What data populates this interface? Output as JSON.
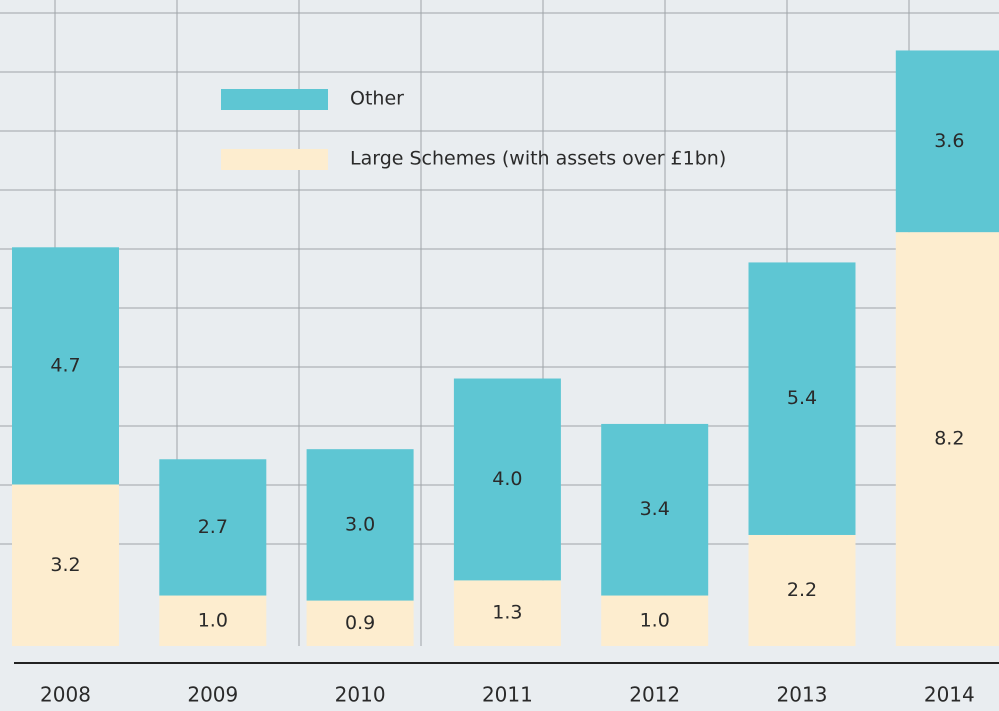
{
  "chart_data": {
    "type": "stacked_bar",
    "categories": [
      "2008",
      "2009",
      "2010",
      "2011",
      "2012",
      "2013",
      "2014"
    ],
    "series": [
      {
        "name": "Large Schemes (with assets over £1bn)",
        "color": "#fdedcf",
        "values": [
          3.2,
          1.0,
          0.9,
          1.3,
          1.0,
          2.2,
          8.2
        ],
        "value_labels": [
          "3.2",
          "1.0",
          "0.9",
          "1.3",
          "1.0",
          "2.2",
          "8.2"
        ]
      },
      {
        "name": "Other",
        "color": "#5ec6d3",
        "values": [
          4.7,
          2.7,
          3.0,
          4.0,
          3.4,
          5.4,
          3.6
        ],
        "value_labels": [
          "4.7",
          "2.7",
          "3.0",
          "4.0",
          "3.4",
          "5.4",
          "3.6"
        ]
      }
    ],
    "ylim": [
      0,
      12.8
    ],
    "legend": "top-left"
  }
}
